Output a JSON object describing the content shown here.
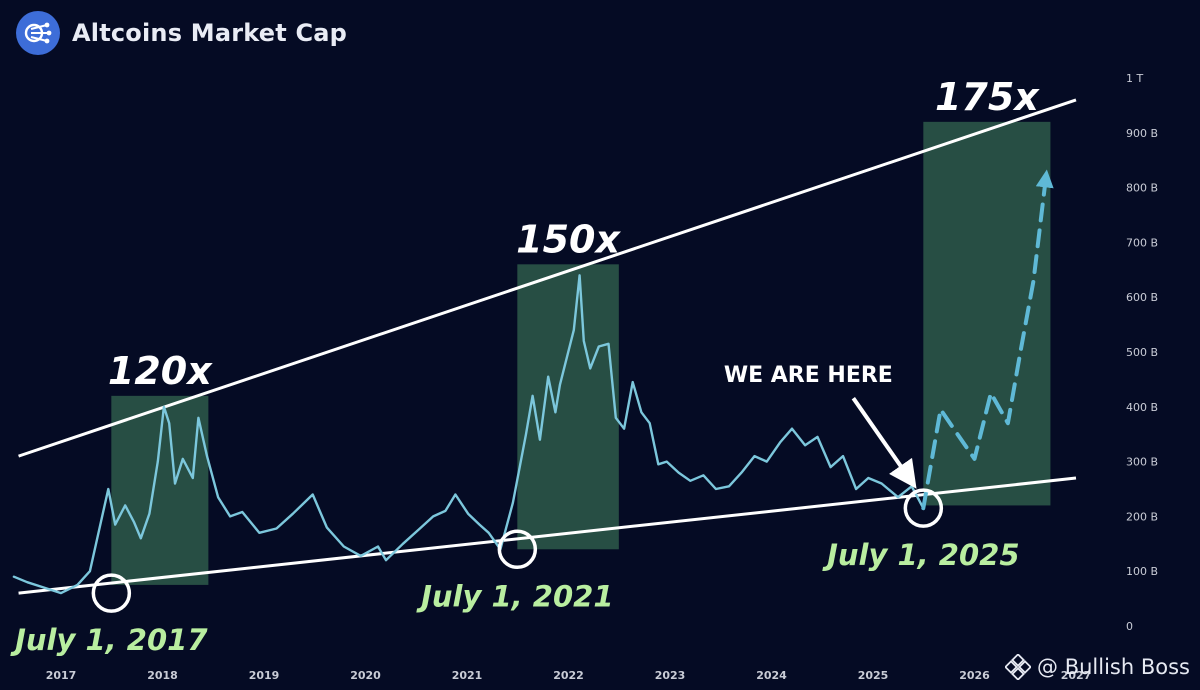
{
  "header": {
    "title": "Altcoins Market Cap",
    "logo_icon": "network-nodes-icon"
  },
  "watermark": {
    "text": "@ Bullish Boss",
    "icon": "binance-diamond-icon"
  },
  "colors": {
    "background": "#050b24",
    "series": "#7cc7dc",
    "projection": "#5fb9d6",
    "highlight_box": "#2e5a4a",
    "trendline": "#ffffff",
    "date_label": "#b9eea0",
    "multiplier_label": "#ffffff"
  },
  "chart_data": {
    "type": "line",
    "x_type": "date",
    "x_tick_labels": [
      "2017",
      "2018",
      "2019",
      "2020",
      "2021",
      "2022",
      "2023",
      "2024",
      "2025",
      "2026",
      "2027"
    ],
    "y_tick_labels": [
      "0",
      "100 B",
      "200 B",
      "300 B",
      "400 B",
      "500 B",
      "600 B",
      "700 B",
      "800 B",
      "900 B",
      "1 T"
    ],
    "y_axis_position": "right",
    "ylim": [
      0,
      1000
    ],
    "y_unit": "B",
    "grid": false,
    "series": [
      {
        "style": "solid",
        "points": [
          [
            "2016-07-15",
            90
          ],
          [
            "2016-09-01",
            80
          ],
          [
            "2016-11-01",
            70
          ],
          [
            "2017-01-01",
            60
          ],
          [
            "2017-03-01",
            75
          ],
          [
            "2017-04-15",
            100
          ],
          [
            "2017-05-20",
            180
          ],
          [
            "2017-06-20",
            250
          ],
          [
            "2017-07-15",
            185
          ],
          [
            "2017-08-20",
            220
          ],
          [
            "2017-09-20",
            190
          ],
          [
            "2017-10-15",
            160
          ],
          [
            "2017-11-15",
            205
          ],
          [
            "2017-12-15",
            300
          ],
          [
            "2018-01-06",
            400
          ],
          [
            "2018-01-25",
            370
          ],
          [
            "2018-02-15",
            260
          ],
          [
            "2018-03-15",
            305
          ],
          [
            "2018-04-20",
            270
          ],
          [
            "2018-05-10",
            380
          ],
          [
            "2018-06-10",
            310
          ],
          [
            "2018-07-20",
            235
          ],
          [
            "2018-09-01",
            200
          ],
          [
            "2018-10-15",
            208
          ],
          [
            "2018-12-15",
            170
          ],
          [
            "2019-02-15",
            178
          ],
          [
            "2019-04-15",
            205
          ],
          [
            "2019-06-25",
            240
          ],
          [
            "2019-08-15",
            180
          ],
          [
            "2019-10-15",
            145
          ],
          [
            "2019-12-15",
            128
          ],
          [
            "2020-02-15",
            145
          ],
          [
            "2020-03-15",
            120
          ],
          [
            "2020-05-15",
            150
          ],
          [
            "2020-07-15",
            178
          ],
          [
            "2020-09-01",
            200
          ],
          [
            "2020-10-15",
            210
          ],
          [
            "2020-11-20",
            240
          ],
          [
            "2021-01-05",
            205
          ],
          [
            "2021-02-15",
            185
          ],
          [
            "2021-03-20",
            170
          ],
          [
            "2021-05-01",
            140
          ],
          [
            "2021-06-15",
            225
          ],
          [
            "2021-08-01",
            350
          ],
          [
            "2021-08-25",
            420
          ],
          [
            "2021-09-20",
            340
          ],
          [
            "2021-10-20",
            455
          ],
          [
            "2021-11-15",
            390
          ],
          [
            "2021-12-01",
            440
          ],
          [
            "2022-01-20",
            540
          ],
          [
            "2022-02-10",
            640
          ],
          [
            "2022-02-25",
            520
          ],
          [
            "2022-03-20",
            470
          ],
          [
            "2022-04-20",
            510
          ],
          [
            "2022-05-25",
            515
          ],
          [
            "2022-06-20",
            380
          ],
          [
            "2022-07-20",
            360
          ],
          [
            "2022-08-20",
            445
          ],
          [
            "2022-09-20",
            390
          ],
          [
            "2022-10-20",
            370
          ],
          [
            "2022-11-20",
            295
          ],
          [
            "2022-12-20",
            300
          ],
          [
            "2023-02-01",
            280
          ],
          [
            "2023-03-15",
            265
          ],
          [
            "2023-05-01",
            275
          ],
          [
            "2023-06-15",
            250
          ],
          [
            "2023-08-01",
            255
          ],
          [
            "2023-09-15",
            280
          ],
          [
            "2023-11-01",
            310
          ],
          [
            "2023-12-15",
            300
          ],
          [
            "2024-02-01",
            335
          ],
          [
            "2024-03-15",
            360
          ],
          [
            "2024-05-01",
            330
          ],
          [
            "2024-06-15",
            345
          ],
          [
            "2024-08-01",
            290
          ],
          [
            "2024-09-15",
            310
          ],
          [
            "2024-11-01",
            250
          ],
          [
            "2024-12-15",
            270
          ],
          [
            "2025-02-01",
            260
          ],
          [
            "2025-04-01",
            235
          ],
          [
            "2025-05-20",
            255
          ],
          [
            "2025-07-01",
            215
          ]
        ]
      },
      {
        "style": "dashed",
        "points": [
          [
            "2025-07-01",
            215
          ],
          [
            "2025-09-01",
            395
          ],
          [
            "2025-11-01",
            350
          ],
          [
            "2026-01-01",
            305
          ],
          [
            "2026-03-01",
            425
          ],
          [
            "2026-05-01",
            370
          ],
          [
            "2026-06-15",
            500
          ],
          [
            "2026-08-01",
            630
          ],
          [
            "2026-09-15",
            820
          ]
        ]
      }
    ],
    "trendlines": [
      {
        "name": "upper",
        "points": [
          [
            "2016-08-01",
            310
          ],
          [
            "2027-01-01",
            960
          ]
        ]
      },
      {
        "name": "lower",
        "points": [
          [
            "2016-08-01",
            60
          ],
          [
            "2027-01-01",
            270
          ]
        ]
      }
    ],
    "highlight_boxes": [
      {
        "x_start": "2017-07-01",
        "x_end": "2018-06-15",
        "y_start": 75,
        "y_end": 420,
        "label": "120x"
      },
      {
        "x_start": "2021-07-01",
        "x_end": "2022-07-01",
        "y_start": 140,
        "y_end": 660,
        "label": "150x"
      },
      {
        "x_start": "2025-07-01",
        "x_end": "2026-10-01",
        "y_start": 220,
        "y_end": 920,
        "label": "175x"
      }
    ],
    "markers": [
      {
        "x": "2017-07-01",
        "y": 60,
        "label": "July 1, 2017"
      },
      {
        "x": "2021-07-01",
        "y": 140,
        "label": "July 1, 2021"
      },
      {
        "x": "2025-07-01",
        "y": 215,
        "label": "July 1, 2025"
      }
    ],
    "annotations": [
      {
        "text": "WE ARE HERE",
        "arrow_to": [
          "2025-07-01",
          215
        ]
      }
    ]
  }
}
